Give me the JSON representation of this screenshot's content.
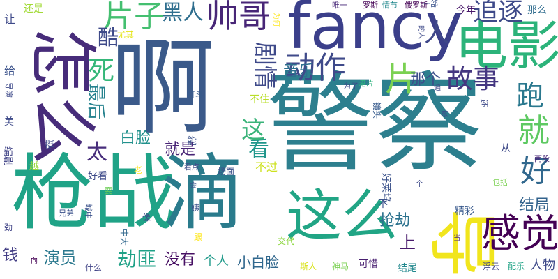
{
  "words": [
    {
      "text": "警察",
      "color": "#2d7f8e",
      "vertical": false
    },
    {
      "text": "啊",
      "color": "#3b5a8a",
      "vertical": false
    },
    {
      "text": "fancy",
      "color": "#3b3f8a",
      "vertical": false
    },
    {
      "text": "枪战",
      "color": "#20a387",
      "vertical": false
    },
    {
      "text": "滴",
      "color": "#2a7b8c",
      "vertical": false
    },
    {
      "text": "怎么",
      "color": "#472c7a",
      "vertical": true
    },
    {
      "text": "电影",
      "color": "#2cb37a",
      "vertical": false
    },
    {
      "text": "这么",
      "color": "#21a585",
      "vertical": false
    },
    {
      "text": "导",
      "color": "#f1e51d",
      "vertical": true
    },
    {
      "text": "感觉",
      "color": "#440154",
      "vertical": false
    },
    {
      "text": "片子",
      "color": "#44bf70",
      "vertical": false
    },
    {
      "text": "帅哥",
      "color": "#482677",
      "vertical": false
    },
    {
      "text": "黑人",
      "color": "#2e6e8e",
      "vertical": false
    },
    {
      "text": "剧情",
      "color": "#3e4989",
      "vertical": true
    },
    {
      "text": "动作",
      "color": "#3f4a8a",
      "vertical": false
    },
    {
      "text": "片",
      "color": "#7ad151",
      "vertical": false
    },
    {
      "text": "追逐",
      "color": "#3e4a89",
      "vertical": false
    },
    {
      "text": "故事",
      "color": "#453781",
      "vertical": false
    },
    {
      "text": "跑",
      "color": "#2a788e",
      "vertical": false
    },
    {
      "text": "就",
      "color": "#5ec962",
      "vertical": false
    },
    {
      "text": "好",
      "color": "#31688e",
      "vertical": false
    },
    {
      "text": "死",
      "color": "#35b779",
      "vertical": false
    },
    {
      "text": "酷",
      "color": "#3e4a89",
      "vertical": false
    },
    {
      "text": "最后",
      "color": "#26828e",
      "vertical": true
    },
    {
      "text": "太",
      "color": "#472d7b",
      "vertical": false
    },
    {
      "text": "白脸",
      "color": "#21918c",
      "vertical": false
    },
    {
      "text": "就是",
      "color": "#482475",
      "vertical": false
    },
    {
      "text": "这",
      "color": "#3ab379",
      "vertical": false
    },
    {
      "text": "看",
      "color": "#1f968b",
      "vertical": false
    },
    {
      "text": "音乐",
      "color": "#2e6f8e",
      "vertical": false
    },
    {
      "text": "那个",
      "color": "#3d4e8a",
      "vertical": false
    },
    {
      "text": "人",
      "color": "#3f4889",
      "vertical": false
    },
    {
      "text": "上",
      "color": "#481a6c",
      "vertical": false
    },
    {
      "text": "结局",
      "color": "#33638d",
      "vertical": false
    },
    {
      "text": "抢劫",
      "color": "#2c728e",
      "vertical": false
    },
    {
      "text": "劫匪",
      "color": "#1fa187",
      "vertical": false
    },
    {
      "text": "演员",
      "color": "#2a788e",
      "vertical": false
    },
    {
      "text": "没有",
      "color": "#471063",
      "vertical": false
    },
    {
      "text": "个人",
      "color": "#1f9a8a",
      "vertical": false
    },
    {
      "text": "小白脸",
      "color": "#31688e",
      "vertical": false
    },
    {
      "text": "钱",
      "color": "#433e85",
      "vertical": false
    },
    {
      "text": "人物",
      "color": "#3e4989",
      "vertical": false
    },
    {
      "text": "精彩",
      "color": "#38598c",
      "vertical": false
    },
    {
      "text": "可惜",
      "color": "#481f70",
      "vertical": false
    },
    {
      "text": "结尾",
      "color": "#23898e",
      "vertical": false
    },
    {
      "text": "浮云",
      "color": "#3f4788",
      "vertical": false
    },
    {
      "text": "配乐",
      "color": "#20a386",
      "vertical": false
    },
    {
      "text": "今年",
      "color": "#481769",
      "vertical": false
    },
    {
      "text": "那么",
      "color": "#2f6c8e",
      "vertical": false
    },
    {
      "text": "还是",
      "color": "#a2da37",
      "vertical": false
    },
    {
      "text": "唯一",
      "color": "#482878",
      "vertical": false
    },
    {
      "text": "罗斯",
      "color": "#440154",
      "vertical": false
    },
    {
      "text": "情节",
      "color": "#23898e",
      "vertical": false
    },
    {
      "text": "俄罗斯",
      "color": "#440154",
      "vertical": false
    },
    {
      "text": "尤其",
      "color": "#e5e419",
      "vertical": false
    },
    {
      "text": "打斗",
      "color": "#375a8c",
      "vertical": false
    },
    {
      "text": "为了",
      "color": "#3e4a89",
      "vertical": false
    },
    {
      "text": "港片",
      "color": "#2db27d",
      "vertical": false
    },
    {
      "text": "不住",
      "color": "#b8de29",
      "vertical": false
    },
    {
      "text": "镜头",
      "color": "#375b8d",
      "vertical": true
    },
    {
      "text": "不过",
      "color": "#cde11d",
      "vertical": false
    },
    {
      "text": "能",
      "color": "#3b528b",
      "vertical": false
    },
    {
      "text": "看点",
      "color": "#3d4d8a",
      "vertical": false
    },
    {
      "text": "场面",
      "color": "#3b528b",
      "vertical": false
    },
    {
      "text": "好莱坞",
      "color": "#3b528b",
      "vertical": true
    },
    {
      "text": "不",
      "color": "#3b528b",
      "vertical": false
    },
    {
      "text": "交代",
      "color": "#8fd744",
      "vertical": false
    },
    {
      "text": "神马",
      "color": "#7ad151",
      "vertical": false
    },
    {
      "text": "斯人",
      "color": "#d8e219",
      "vertical": false
    },
    {
      "text": "什么",
      "color": "#414487",
      "vertical": false
    },
    {
      "text": "中大",
      "color": "#31688e",
      "vertical": true
    },
    {
      "text": "姨",
      "color": "#3b528b",
      "vertical": false
    },
    {
      "text": "跟",
      "color": "#fde725",
      "vertical": false
    },
    {
      "text": "像",
      "color": "#3e4a89",
      "vertical": false
    },
    {
      "text": "会",
      "color": "#3b528b",
      "vertical": false
    },
    {
      "text": "兄弟",
      "color": "#3b528b",
      "vertical": false
    },
    {
      "text": "城中",
      "color": "#3b528b",
      "vertical": true
    },
    {
      "text": "老",
      "color": "#fde725",
      "vertical": false
    },
    {
      "text": "耍",
      "color": "#6ece58",
      "vertical": false
    },
    {
      "text": "好看",
      "color": "#3e4a89",
      "vertical": false
    },
    {
      "text": "越",
      "color": "#9bd93c",
      "vertical": false
    },
    {
      "text": "挺",
      "color": "#3e4a89",
      "vertical": false
    },
    {
      "text": "编剧",
      "color": "#414487",
      "vertical": true
    },
    {
      "text": "美",
      "color": "#3e4a89",
      "vertical": false
    },
    {
      "text": "导演",
      "color": "#3e4a89",
      "vertical": true
    },
    {
      "text": "给",
      "color": "#3b528b",
      "vertical": false
    },
    {
      "text": "让",
      "color": "#3e4a89",
      "vertical": false
    },
    {
      "text": "劲",
      "color": "#414487",
      "vertical": false
    },
    {
      "text": "向",
      "color": "#440154",
      "vertical": false
    },
    {
      "text": "一部",
      "color": "#3b528b",
      "vertical": false
    },
    {
      "text": "两段",
      "color": "#482878",
      "vertical": false
    },
    {
      "text": "包括",
      "color": "#7ad151",
      "vertical": false
    },
    {
      "text": "还",
      "color": "#3e4a89",
      "vertical": true
    },
    {
      "text": "从",
      "color": "#3e4a89",
      "vertical": false
    },
    {
      "text": "个",
      "color": "#3e4a89",
      "vertical": false
    },
    {
      "text": "遍",
      "color": "#3e4a89",
      "vertical": false
    },
    {
      "text": "当",
      "color": "#482878",
      "vertical": false
    },
    {
      "text": "东",
      "color": "#3e4a89",
      "vertical": false
    },
    {
      "text": "为何",
      "color": "#fde725",
      "vertical": true
    },
    {
      "text": "的人",
      "color": "#3e4a89",
      "vertical": true
    }
  ]
}
